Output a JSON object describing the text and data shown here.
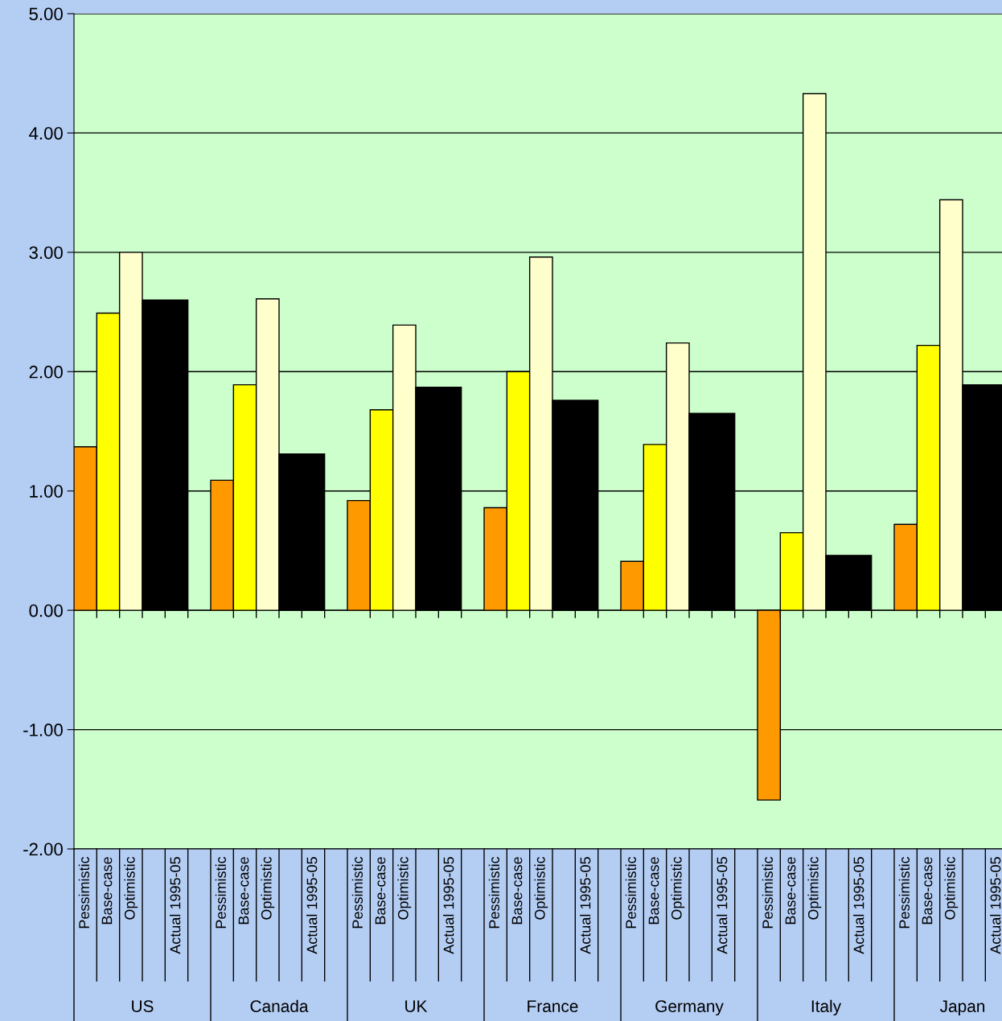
{
  "chart_data": {
    "type": "bar",
    "categories": [
      "Pessimistic",
      "Base-case",
      "Optimistic",
      "Actual 1995-05",
      "Pessimistic",
      "Base-case",
      "Optimistic",
      "Actual 1995-05",
      "Pessimistic",
      "Base-case",
      "Optimistic",
      "Actual 1995-05",
      "Pessimistic",
      "Base-case",
      "Optimistic",
      "Actual 1995-05",
      "Pessimistic",
      "Base-case",
      "Optimistic",
      "Actual 1995-05",
      "Pessimistic",
      "Base-case",
      "Optimistic",
      "Actual 1995-05",
      "Pessimistic",
      "Base-case",
      "Optimistic",
      "Actual 1995-05"
    ],
    "values": [
      1.37,
      2.49,
      3.0,
      2.6,
      1.09,
      1.89,
      2.61,
      1.31,
      0.92,
      1.68,
      2.39,
      1.87,
      0.86,
      2.0,
      2.96,
      1.76,
      0.41,
      1.39,
      2.24,
      1.65,
      -1.59,
      0.65,
      4.33,
      0.46,
      0.72,
      2.22,
      3.44,
      1.89
    ],
    "colors": [
      "#ff9900",
      "#ffff00",
      "#ffffcc",
      "#000000",
      "#ff9900",
      "#ffff00",
      "#ffffcc",
      "#000000",
      "#ff9900",
      "#ffff00",
      "#ffffcc",
      "#000000",
      "#ff9900",
      "#ffff00",
      "#ffffcc",
      "#000000",
      "#ff9900",
      "#ffff00",
      "#ffffcc",
      "#000000",
      "#ff9900",
      "#ffff00",
      "#ffffcc",
      "#000000",
      "#ff9900",
      "#ffff00",
      "#ffffcc",
      "#000000"
    ],
    "annotations": [
      "US",
      "Canada",
      "UK",
      "France",
      "Germany",
      "Italy",
      "Japan"
    ],
    "ylim": [
      -2,
      5
    ],
    "yticks": [
      {
        "value": -2,
        "label": "-2.00"
      },
      {
        "value": -1,
        "label": "-1.00"
      },
      {
        "value": 0,
        "label": "0.00"
      },
      {
        "value": 1,
        "label": "1.00"
      },
      {
        "value": 2,
        "label": "2.00"
      },
      {
        "value": 3,
        "label": "3.00"
      },
      {
        "value": 4,
        "label": "4.00"
      },
      {
        "value": 5,
        "label": "5.00"
      }
    ],
    "grid": "y",
    "legend": false
  }
}
